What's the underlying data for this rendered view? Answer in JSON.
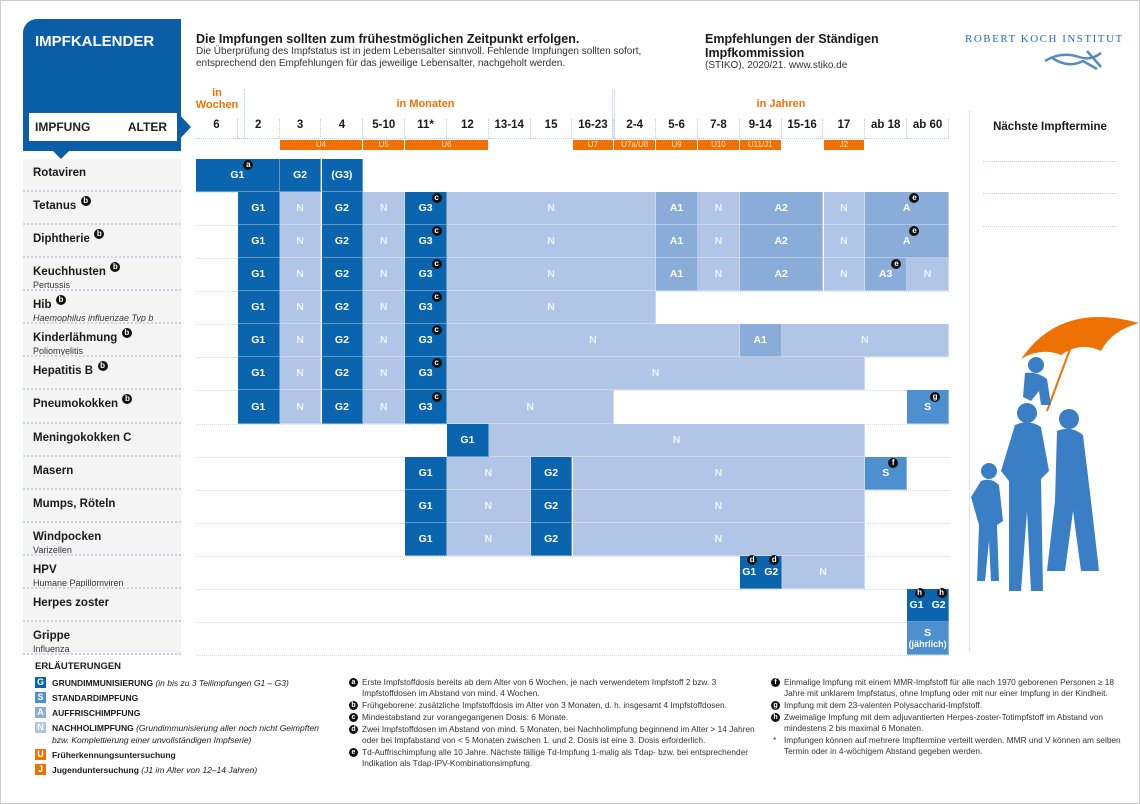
{
  "header": {
    "title": "IMPFKALENDER",
    "impfung_label": "IMPFUNG",
    "alter_label": "ALTER",
    "headline": "Die Impfungen sollten zum frühestmöglichen Zeitpunkt erfolgen.",
    "subline1": "Die Überprüfung des Impfstatus ist in jedem Lebensalter sinnvoll. Fehlende Impfungen sollten sofort,",
    "subline2": "entsprechend den Empfehlungen für das jeweilige Lebensalter, nachgeholt werden.",
    "stiko_title": "Empfehlungen der Ständigen Impfkommission",
    "stiko_sub": "(STIKO), 2020/21. www.stiko.de",
    "logo_text": "ROBERT KOCH INSTITUT"
  },
  "age_groups": {
    "weeks": "in Wochen",
    "months": "in Monaten",
    "years": "in Jahren"
  },
  "columns": [
    "6",
    "2",
    "3",
    "4",
    "5-10",
    "11*",
    "12",
    "13-14",
    "15",
    "16-23",
    "2-4",
    "5-6",
    "7-8",
    "9-14",
    "15-16",
    "17",
    "ab 18",
    "ab 60"
  ],
  "checkups": [
    {
      "label": "U4",
      "from": 2,
      "to": 3
    },
    {
      "label": "U5",
      "from": 4,
      "to": 4
    },
    {
      "label": "U6",
      "from": 5,
      "to": 6
    },
    {
      "label": "U7",
      "from": 9,
      "to": 9
    },
    {
      "label": "U7a/U8",
      "from": 10,
      "to": 10
    },
    {
      "label": "U9",
      "from": 11,
      "to": 11
    },
    {
      "label": "U10",
      "from": 12,
      "to": 12
    },
    {
      "label": "U11/J1",
      "from": 13,
      "to": 13
    },
    {
      "label": "J2",
      "from": 15,
      "to": 15
    }
  ],
  "colors": {
    "G": "#0a64ae",
    "S": "#4d8fcf",
    "A": "#8aacd9",
    "N": "#b1c5e7",
    "orange": "#ee7203"
  },
  "next_appointments_title": "Nächste Impftermine",
  "rows": [
    {
      "name": "Rotaviren",
      "sub": "",
      "note": "",
      "segs": [
        {
          "f": 0,
          "t": 1,
          "k": "G",
          "parts": [
            {
              "l": "G1",
              "n": "a"
            }
          ]
        },
        {
          "f": 2,
          "t": 2,
          "k": "G",
          "parts": [
            {
              "l": "G2"
            }
          ]
        },
        {
          "f": 3,
          "t": 3,
          "k": "G",
          "parts": [
            {
              "l": "(G3)"
            }
          ]
        }
      ]
    },
    {
      "name": "Tetanus",
      "sub": "",
      "note": "b",
      "segs": [
        {
          "f": 1,
          "t": 1,
          "k": "G",
          "parts": [
            {
              "l": "G1"
            }
          ]
        },
        {
          "f": 2,
          "t": 2,
          "k": "N",
          "parts": [
            {
              "l": "N"
            }
          ]
        },
        {
          "f": 3,
          "t": 3,
          "k": "G",
          "parts": [
            {
              "l": "G2"
            }
          ]
        },
        {
          "f": 4,
          "t": 4,
          "k": "N",
          "parts": [
            {
              "l": "N"
            }
          ]
        },
        {
          "f": 5,
          "t": 5,
          "k": "G",
          "parts": [
            {
              "l": "G3",
              "n": "c"
            }
          ]
        },
        {
          "f": 6,
          "t": 10,
          "k": "N",
          "parts": [
            {
              "l": "N"
            }
          ]
        },
        {
          "f": 11,
          "t": 11,
          "k": "A",
          "parts": [
            {
              "l": "A1"
            }
          ]
        },
        {
          "f": 12,
          "t": 12,
          "k": "N",
          "parts": [
            {
              "l": "N"
            }
          ]
        },
        {
          "f": 13,
          "t": 14,
          "k": "A",
          "parts": [
            {
              "l": "A2"
            }
          ]
        },
        {
          "f": 15,
          "t": 15,
          "k": "N",
          "parts": [
            {
              "l": "N"
            }
          ]
        },
        {
          "f": 16,
          "t": 17,
          "k": "A",
          "parts": [
            {
              "l": "A",
              "n": "e"
            }
          ]
        }
      ]
    },
    {
      "name": "Diphtherie",
      "sub": "",
      "note": "b",
      "segs": [
        {
          "f": 1,
          "t": 1,
          "k": "G",
          "parts": [
            {
              "l": "G1"
            }
          ]
        },
        {
          "f": 2,
          "t": 2,
          "k": "N",
          "parts": [
            {
              "l": "N"
            }
          ]
        },
        {
          "f": 3,
          "t": 3,
          "k": "G",
          "parts": [
            {
              "l": "G2"
            }
          ]
        },
        {
          "f": 4,
          "t": 4,
          "k": "N",
          "parts": [
            {
              "l": "N"
            }
          ]
        },
        {
          "f": 5,
          "t": 5,
          "k": "G",
          "parts": [
            {
              "l": "G3",
              "n": "c"
            }
          ]
        },
        {
          "f": 6,
          "t": 10,
          "k": "N",
          "parts": [
            {
              "l": "N"
            }
          ]
        },
        {
          "f": 11,
          "t": 11,
          "k": "A",
          "parts": [
            {
              "l": "A1"
            }
          ]
        },
        {
          "f": 12,
          "t": 12,
          "k": "N",
          "parts": [
            {
              "l": "N"
            }
          ]
        },
        {
          "f": 13,
          "t": 14,
          "k": "A",
          "parts": [
            {
              "l": "A2"
            }
          ]
        },
        {
          "f": 15,
          "t": 15,
          "k": "N",
          "parts": [
            {
              "l": "N"
            }
          ]
        },
        {
          "f": 16,
          "t": 17,
          "k": "A",
          "parts": [
            {
              "l": "A",
              "n": "e"
            }
          ]
        }
      ]
    },
    {
      "name": "Keuchhusten",
      "sub": "Pertussis",
      "note": "b",
      "segs": [
        {
          "f": 1,
          "t": 1,
          "k": "G",
          "parts": [
            {
              "l": "G1"
            }
          ]
        },
        {
          "f": 2,
          "t": 2,
          "k": "N",
          "parts": [
            {
              "l": "N"
            }
          ]
        },
        {
          "f": 3,
          "t": 3,
          "k": "G",
          "parts": [
            {
              "l": "G2"
            }
          ]
        },
        {
          "f": 4,
          "t": 4,
          "k": "N",
          "parts": [
            {
              "l": "N"
            }
          ]
        },
        {
          "f": 5,
          "t": 5,
          "k": "G",
          "parts": [
            {
              "l": "G3",
              "n": "c"
            }
          ]
        },
        {
          "f": 6,
          "t": 10,
          "k": "N",
          "parts": [
            {
              "l": "N"
            }
          ]
        },
        {
          "f": 11,
          "t": 11,
          "k": "A",
          "parts": [
            {
              "l": "A1"
            }
          ]
        },
        {
          "f": 12,
          "t": 12,
          "k": "N",
          "parts": [
            {
              "l": "N"
            }
          ]
        },
        {
          "f": 13,
          "t": 14,
          "k": "A",
          "parts": [
            {
              "l": "A2"
            }
          ]
        },
        {
          "f": 15,
          "t": 15,
          "k": "N",
          "parts": [
            {
              "l": "N"
            }
          ]
        },
        {
          "f": 16,
          "t": 16,
          "k": "A",
          "parts": [
            {
              "l": "A3",
              "n": "e"
            }
          ]
        },
        {
          "f": 17,
          "t": 17,
          "k": "N",
          "parts": [
            {
              "l": "N"
            }
          ]
        }
      ]
    },
    {
      "name": "Hib",
      "sub": "Haemophilus influenzae Typ b",
      "note": "b",
      "segs": [
        {
          "f": 1,
          "t": 1,
          "k": "G",
          "parts": [
            {
              "l": "G1"
            }
          ]
        },
        {
          "f": 2,
          "t": 2,
          "k": "N",
          "parts": [
            {
              "l": "N"
            }
          ]
        },
        {
          "f": 3,
          "t": 3,
          "k": "G",
          "parts": [
            {
              "l": "G2"
            }
          ]
        },
        {
          "f": 4,
          "t": 4,
          "k": "N",
          "parts": [
            {
              "l": "N"
            }
          ]
        },
        {
          "f": 5,
          "t": 5,
          "k": "G",
          "parts": [
            {
              "l": "G3",
              "n": "c"
            }
          ]
        },
        {
          "f": 6,
          "t": 10,
          "k": "N",
          "parts": [
            {
              "l": "N"
            }
          ]
        }
      ]
    },
    {
      "name": "Kinderlähmung",
      "sub": "Poliomyelitis",
      "note": "b",
      "segs": [
        {
          "f": 1,
          "t": 1,
          "k": "G",
          "parts": [
            {
              "l": "G1"
            }
          ]
        },
        {
          "f": 2,
          "t": 2,
          "k": "N",
          "parts": [
            {
              "l": "N"
            }
          ]
        },
        {
          "f": 3,
          "t": 3,
          "k": "G",
          "parts": [
            {
              "l": "G2"
            }
          ]
        },
        {
          "f": 4,
          "t": 4,
          "k": "N",
          "parts": [
            {
              "l": "N"
            }
          ]
        },
        {
          "f": 5,
          "t": 5,
          "k": "G",
          "parts": [
            {
              "l": "G3",
              "n": "c"
            }
          ]
        },
        {
          "f": 6,
          "t": 12,
          "k": "N",
          "parts": [
            {
              "l": "N"
            }
          ]
        },
        {
          "f": 13,
          "t": 13,
          "k": "A",
          "parts": [
            {
              "l": "A1"
            }
          ]
        },
        {
          "f": 14,
          "t": 17,
          "k": "N",
          "parts": [
            {
              "l": "N"
            }
          ]
        }
      ]
    },
    {
      "name": "Hepatitis B",
      "sub": "",
      "note": "b",
      "segs": [
        {
          "f": 1,
          "t": 1,
          "k": "G",
          "parts": [
            {
              "l": "G1"
            }
          ]
        },
        {
          "f": 2,
          "t": 2,
          "k": "N",
          "parts": [
            {
              "l": "N"
            }
          ]
        },
        {
          "f": 3,
          "t": 3,
          "k": "G",
          "parts": [
            {
              "l": "G2"
            }
          ]
        },
        {
          "f": 4,
          "t": 4,
          "k": "N",
          "parts": [
            {
              "l": "N"
            }
          ]
        },
        {
          "f": 5,
          "t": 5,
          "k": "G",
          "parts": [
            {
              "l": "G3",
              "n": "c"
            }
          ]
        },
        {
          "f": 6,
          "t": 15,
          "k": "N",
          "parts": [
            {
              "l": "N"
            }
          ]
        }
      ]
    },
    {
      "name": "Pneumokokken",
      "sub": "",
      "note": "b",
      "segs": [
        {
          "f": 1,
          "t": 1,
          "k": "G",
          "parts": [
            {
              "l": "G1"
            }
          ]
        },
        {
          "f": 2,
          "t": 2,
          "k": "N",
          "parts": [
            {
              "l": "N"
            }
          ]
        },
        {
          "f": 3,
          "t": 3,
          "k": "G",
          "parts": [
            {
              "l": "G2"
            }
          ]
        },
        {
          "f": 4,
          "t": 4,
          "k": "N",
          "parts": [
            {
              "l": "N"
            }
          ]
        },
        {
          "f": 5,
          "t": 5,
          "k": "G",
          "parts": [
            {
              "l": "G3",
              "n": "c"
            }
          ]
        },
        {
          "f": 6,
          "t": 9,
          "k": "N",
          "parts": [
            {
              "l": "N"
            }
          ]
        },
        {
          "f": 17,
          "t": 17,
          "k": "S",
          "parts": [
            {
              "l": "S",
              "n": "g"
            }
          ]
        }
      ]
    },
    {
      "name": "Meningokokken C",
      "sub": "",
      "note": "",
      "segs": [
        {
          "f": 6,
          "t": 6,
          "k": "G",
          "parts": [
            {
              "l": "G1"
            }
          ]
        },
        {
          "f": 7,
          "t": 15,
          "k": "N",
          "parts": [
            {
              "l": "N"
            }
          ]
        }
      ]
    },
    {
      "name": "Masern",
      "sub": "",
      "note": "",
      "segs": [
        {
          "f": 5,
          "t": 5,
          "k": "G",
          "parts": [
            {
              "l": "G1"
            }
          ]
        },
        {
          "f": 6,
          "t": 7,
          "k": "N",
          "parts": [
            {
              "l": "N"
            }
          ]
        },
        {
          "f": 8,
          "t": 8,
          "k": "G",
          "parts": [
            {
              "l": "G2"
            }
          ]
        },
        {
          "f": 9,
          "t": 15,
          "k": "N",
          "parts": [
            {
              "l": "N"
            }
          ]
        },
        {
          "f": 16,
          "t": 16,
          "k": "S",
          "parts": [
            {
              "l": "S",
              "n": "f"
            }
          ]
        }
      ]
    },
    {
      "name": "Mumps, Röteln",
      "sub": "",
      "note": "",
      "segs": [
        {
          "f": 5,
          "t": 5,
          "k": "G",
          "parts": [
            {
              "l": "G1"
            }
          ]
        },
        {
          "f": 6,
          "t": 7,
          "k": "N",
          "parts": [
            {
              "l": "N"
            }
          ]
        },
        {
          "f": 8,
          "t": 8,
          "k": "G",
          "parts": [
            {
              "l": "G2"
            }
          ]
        },
        {
          "f": 9,
          "t": 15,
          "k": "N",
          "parts": [
            {
              "l": "N"
            }
          ]
        }
      ]
    },
    {
      "name": "Windpocken",
      "sub": "Varizellen",
      "note": "",
      "segs": [
        {
          "f": 5,
          "t": 5,
          "k": "G",
          "parts": [
            {
              "l": "G1"
            }
          ]
        },
        {
          "f": 6,
          "t": 7,
          "k": "N",
          "parts": [
            {
              "l": "N"
            }
          ]
        },
        {
          "f": 8,
          "t": 8,
          "k": "G",
          "parts": [
            {
              "l": "G2"
            }
          ]
        },
        {
          "f": 9,
          "t": 15,
          "k": "N",
          "parts": [
            {
              "l": "N"
            }
          ]
        }
      ]
    },
    {
      "name": "HPV",
      "sub": "Humane Papillomviren",
      "note": "",
      "segs": [
        {
          "f": 13,
          "t": 13,
          "k": "G",
          "parts": [
            {
              "l": "G1",
              "n": "d"
            },
            {
              "l": "G2",
              "n": "d"
            }
          ]
        },
        {
          "f": 14,
          "t": 15,
          "k": "N",
          "parts": [
            {
              "l": "N"
            }
          ]
        }
      ]
    },
    {
      "name": "Herpes zoster",
      "sub": "",
      "note": "",
      "segs": [
        {
          "f": 17,
          "t": 17,
          "k": "G",
          "parts": [
            {
              "l": "G1",
              "n": "h"
            },
            {
              "l": "G2",
              "n": "h"
            }
          ]
        }
      ]
    },
    {
      "name": "Grippe",
      "sub": "Influenza",
      "note": "",
      "segs": [
        {
          "f": 17,
          "t": 17,
          "k": "S",
          "parts": [
            {
              "l": "S",
              "sub": "(jährlich)"
            }
          ]
        }
      ]
    }
  ],
  "legend": {
    "title": "ERLÄUTERUNGEN",
    "items": [
      {
        "letter": "G",
        "key": "G",
        "label": "GRUNDIMMUNISIERUNG",
        "detail": "(in bis zu 3 Teilimpfungen G1 – G3)"
      },
      {
        "letter": "S",
        "key": "S",
        "label": "STANDARDIMPFUNG",
        "detail": ""
      },
      {
        "letter": "A",
        "key": "A",
        "label": "AUFFRISCHIMPFUNG",
        "detail": ""
      },
      {
        "letter": "N",
        "key": "N",
        "label": "NACHHOLIMPFUNG",
        "detail": "(Grundimmunisierung aller noch nicht Geimpften bzw. Komplettierung einer unvollständigen Impfserie)"
      },
      {
        "letter": "U",
        "key": "orange",
        "label": "Früherkennungsuntersuchung",
        "detail": ""
      },
      {
        "letter": "J",
        "key": "orange",
        "label": "Jugenduntersuchung",
        "detail": "(J1 im Alter von 12–14 Jahren)"
      }
    ]
  },
  "footnotes": [
    {
      "mark": "a",
      "text": "Erste Impfstoffdosis bereits ab dem Alter von 6 Wochen, je nach verwendetem Impfstoff 2 bzw. 3 Impfstoffdosen im Abstand von mind. 4 Wochen."
    },
    {
      "mark": "b",
      "text": "Frühgeborene: zusätzliche Impfstoffdosis im Alter von 3 Monaten, d. h. insgesamt 4 Impfstoffdosen."
    },
    {
      "mark": "c",
      "text": "Mindestabstand zur vorangegangenen Dosis: 6 Monate."
    },
    {
      "mark": "d",
      "text": "Zwei Impfstoffdosen im Abstand von mind. 5 Monaten, bei Nachholimpfung beginnend im Alter > 14 Jahren oder bei Impfabstand von < 5 Monaten zwischen 1. und 2. Dosis ist eine 3. Dosis erforderlich."
    },
    {
      "mark": "e",
      "text": "Td-Auffrischimpfung alle 10 Jahre. Nächste fällige Td-Impfung 1-malig als Tdap- bzw. bei entsprechender Indikation als Tdap-IPV-Kombinationsimpfung."
    },
    {
      "mark": "f",
      "text": "Einmalige Impfung mit einem MMR-Impfstoff für alle nach 1970 geborenen Personen ≥ 18 Jahre mit unklarem Impfstatus, ohne Impfung oder mit nur einer Impfung in der Kindheit."
    },
    {
      "mark": "g",
      "text": "Impfung mit dem 23-valenten Polysaccharid-Impfstoff."
    },
    {
      "mark": "h",
      "text": "Zweimalige Impfung mit dem adjuvantierten Herpes-zoster-Totimpfstoff im Abstand von mindestens 2 bis maximal 6 Monaten."
    },
    {
      "mark": "*",
      "text": "Impfungen können auf mehrere Impftermine verteilt werden. MMR und V können am selben Termin oder in 4-wöchigem Abstand gegeben werden."
    }
  ]
}
